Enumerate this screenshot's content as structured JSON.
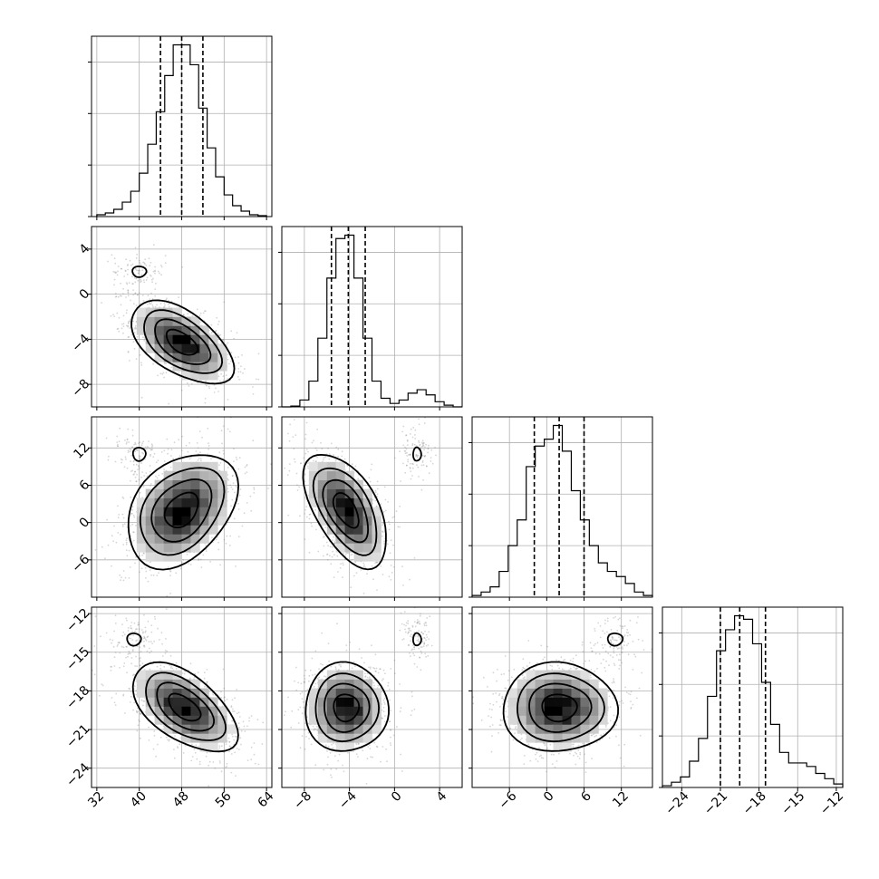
{
  "chart_data": {
    "type": "corner",
    "grid": true,
    "parameters": [
      {
        "index": 0,
        "range": [
          31,
          65
        ],
        "ticks": [
          32,
          40,
          48,
          56,
          64
        ],
        "tick_labels": [
          "32",
          "40",
          "48",
          "56",
          "64"
        ],
        "quantiles": [
          44,
          48,
          52
        ],
        "hist": {
          "edges": [
            32,
            33.6,
            35.2,
            36.8,
            38.4,
            40,
            41.6,
            43.2,
            44.8,
            46.4,
            48,
            49.6,
            51.2,
            52.8,
            54.4,
            56,
            57.6,
            59.2,
            60.8,
            62.4,
            64
          ],
          "counts": [
            0.01,
            0.02,
            0.04,
            0.08,
            0.14,
            0.24,
            0.4,
            0.58,
            0.78,
            0.95,
            0.95,
            0.84,
            0.6,
            0.38,
            0.22,
            0.12,
            0.06,
            0.03,
            0.01,
            0.005
          ]
        }
      },
      {
        "index": 1,
        "range": [
          -10,
          6
        ],
        "ticks": [
          -8,
          -4,
          0,
          4
        ],
        "tick_labels": [
          "−8",
          "−4",
          "0",
          "4"
        ],
        "quantiles": [
          -5.6,
          -4.1,
          -2.6
        ],
        "hist": {
          "edges": [
            -10,
            -9.2,
            -8.4,
            -7.6,
            -6.8,
            -6,
            -5.2,
            -4.4,
            -3.6,
            -2.8,
            -2,
            -1.2,
            -0.4,
            0.4,
            1.2,
            2,
            2.8,
            3.6,
            4.4,
            5.2,
            6
          ],
          "counts": [
            0,
            0.005,
            0.04,
            0.15,
            0.4,
            0.75,
            0.98,
            1.0,
            0.75,
            0.4,
            0.15,
            0.05,
            0.02,
            0.04,
            0.08,
            0.1,
            0.07,
            0.03,
            0.01,
            0
          ]
        }
      },
      {
        "index": 2,
        "range": [
          -12,
          17
        ],
        "ticks": [
          -6,
          0,
          6,
          12
        ],
        "tick_labels": [
          "−6",
          "0",
          "6",
          "12"
        ],
        "quantiles": [
          -2,
          2,
          6
        ],
        "hist": {
          "edges": [
            -12,
            -10.55,
            -9.1,
            -7.65,
            -6.2,
            -4.75,
            -3.3,
            -1.85,
            -0.4,
            1.05,
            2.5,
            3.95,
            5.4,
            6.85,
            8.3,
            9.75,
            11.2,
            12.65,
            14.1,
            15.55,
            17
          ],
          "counts": [
            0.01,
            0.03,
            0.06,
            0.15,
            0.3,
            0.45,
            0.76,
            0.88,
            0.92,
            1.0,
            0.85,
            0.62,
            0.45,
            0.3,
            0.2,
            0.15,
            0.12,
            0.08,
            0.03,
            0.01
          ]
        }
      },
      {
        "index": 3,
        "range": [
          -25.5,
          -11.5
        ],
        "ticks": [
          -24,
          -21,
          -18,
          -15,
          -12
        ],
        "tick_labels": [
          "−24",
          "−21",
          "−18",
          "−15",
          "−12"
        ],
        "quantiles": [
          -21,
          -19.5,
          -17.5
        ],
        "hist": {
          "edges": [
            -25.5,
            -24.8,
            -24.1,
            -23.4,
            -22.7,
            -22,
            -21.3,
            -20.6,
            -19.9,
            -19.2,
            -18.5,
            -17.8,
            -17.1,
            -16.4,
            -15.7,
            -15,
            -14.3,
            -13.6,
            -12.9,
            -12.2,
            -11.5
          ],
          "counts": [
            0.01,
            0.03,
            0.06,
            0.15,
            0.28,
            0.52,
            0.78,
            0.9,
            0.98,
            0.96,
            0.82,
            0.6,
            0.36,
            0.2,
            0.14,
            0.14,
            0.12,
            0.08,
            0.05,
            0.02
          ]
        }
      }
    ],
    "pairs": [
      {
        "x": 0,
        "y": 1,
        "modes": [
          {
            "cx": 48,
            "cy": -4.3,
            "sx": 4.2,
            "sy": 1.6,
            "rho": -0.55,
            "n": 1200
          },
          {
            "cx": 40,
            "cy": 2,
            "sx": 2.2,
            "sy": 0.8,
            "rho": 0,
            "n": 110
          }
        ]
      },
      {
        "x": 0,
        "y": 2,
        "modes": [
          {
            "cx": 48,
            "cy": 2,
            "sx": 4.5,
            "sy": 4,
            "rho": 0.35,
            "n": 1200
          },
          {
            "cx": 40,
            "cy": 11,
            "sx": 2,
            "sy": 1.8,
            "rho": 0,
            "n": 110
          }
        ]
      },
      {
        "x": 0,
        "y": 3,
        "modes": [
          {
            "cx": 48.5,
            "cy": -19.3,
            "sx": 4.3,
            "sy": 1.5,
            "rho": -0.55,
            "n": 1200
          },
          {
            "cx": 39,
            "cy": -14,
            "sx": 2.2,
            "sy": 0.8,
            "rho": 0,
            "n": 110
          }
        ]
      },
      {
        "x": 1,
        "y": 2,
        "modes": [
          {
            "cx": -4.3,
            "cy": 2,
            "sx": 1.6,
            "sy": 4,
            "rho": -0.55,
            "n": 1200
          },
          {
            "cx": 2,
            "cy": 11,
            "sx": 0.6,
            "sy": 1.8,
            "rho": 0,
            "n": 110
          }
        ]
      },
      {
        "x": 1,
        "y": 3,
        "modes": [
          {
            "cx": -4.3,
            "cy": -19.3,
            "sx": 1.6,
            "sy": 1.5,
            "rho": 0,
            "n": 1200
          },
          {
            "cx": 2,
            "cy": -14,
            "sx": 0.6,
            "sy": 0.8,
            "rho": 0,
            "n": 110
          }
        ]
      },
      {
        "x": 2,
        "y": 3,
        "modes": [
          {
            "cx": 2,
            "cy": -19.3,
            "sx": 4,
            "sy": 1.5,
            "rho": 0,
            "n": 1200
          },
          {
            "cx": 11,
            "cy": -14,
            "sx": 2,
            "sy": 0.8,
            "rho": 0,
            "n": 110
          }
        ]
      }
    ]
  }
}
